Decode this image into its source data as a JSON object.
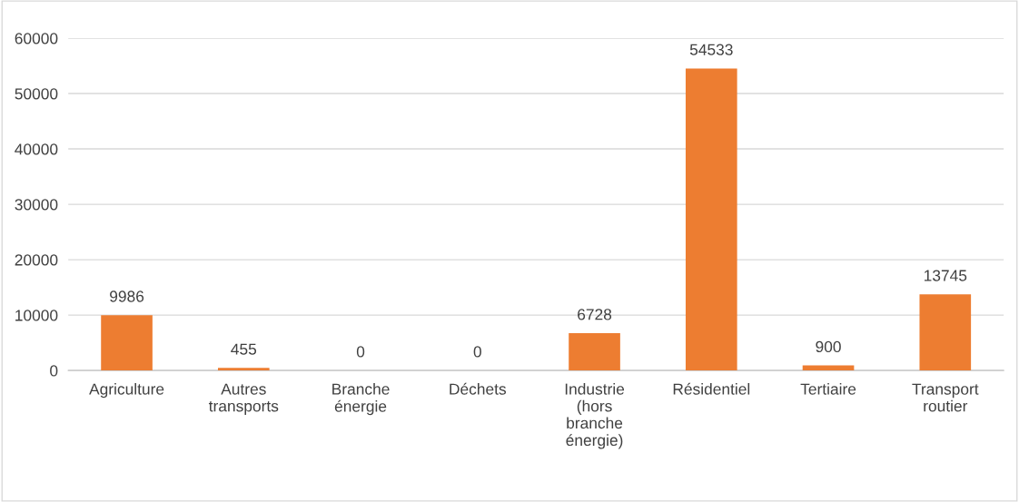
{
  "chart_data": {
    "type": "bar",
    "categories": [
      "Agriculture",
      "Autres\ntransports",
      "Branche\nénergie",
      "Déchets",
      "Industrie\n(hors\nbranche\nénergie)",
      "Résidentiel",
      "Tertiaire",
      "Transport\nroutier"
    ],
    "values": [
      9986,
      455,
      0,
      0,
      6728,
      54533,
      900,
      13745
    ],
    "color": "#ed7d31",
    "ylim": [
      0,
      60000
    ],
    "yticks": [
      0,
      10000,
      20000,
      30000,
      40000,
      50000,
      60000
    ],
    "grid": "y",
    "data_labels": true
  }
}
